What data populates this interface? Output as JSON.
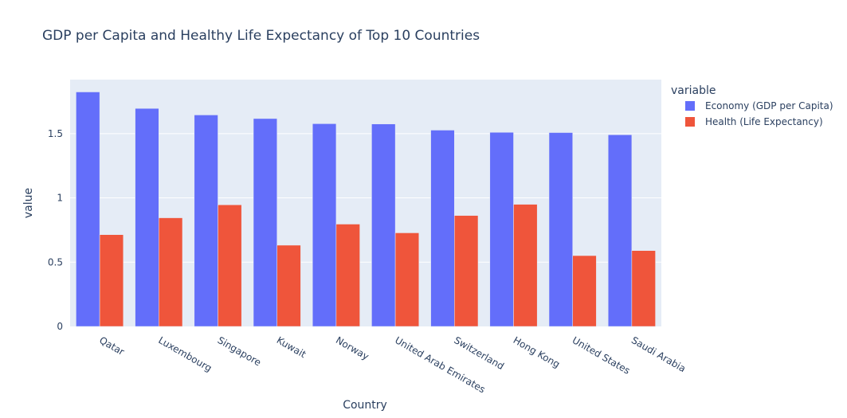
{
  "chart_data": {
    "type": "bar",
    "title": "GDP per Capita and Healthy Life Expectancy of Top 10 Countries",
    "xlabel": "Country",
    "ylabel": "value",
    "categories": [
      "Qatar",
      "Luxembourg",
      "Singapore",
      "Kuwait",
      "Norway",
      "United Arab Emirates",
      "Switzerland",
      "Hong Kong",
      "United States",
      "Saudi Arabia"
    ],
    "series": [
      {
        "name": "Economy (GDP per Capita)",
        "color": "#636efa",
        "values": [
          1.824,
          1.696,
          1.645,
          1.617,
          1.577,
          1.575,
          1.527,
          1.51,
          1.508,
          1.491
        ]
      },
      {
        "name": "Health (Life Expectancy)",
        "color": "#ef553b",
        "values": [
          0.714,
          0.845,
          0.946,
          0.632,
          0.796,
          0.728,
          0.863,
          0.95,
          0.551,
          0.59
        ]
      }
    ],
    "yticks": [
      0,
      0.5,
      1,
      1.5
    ],
    "ytick_labels": [
      "0",
      "0.5",
      "1",
      "1.5"
    ],
    "ylim": [
      0,
      1.92
    ],
    "barmode": "group",
    "grid": true,
    "legend": {
      "title": "variable",
      "position": "top-right"
    },
    "colors": {
      "plot_bg": "#e5ecf6",
      "grid": "#ffffff",
      "text": "#2a3f5f"
    }
  }
}
